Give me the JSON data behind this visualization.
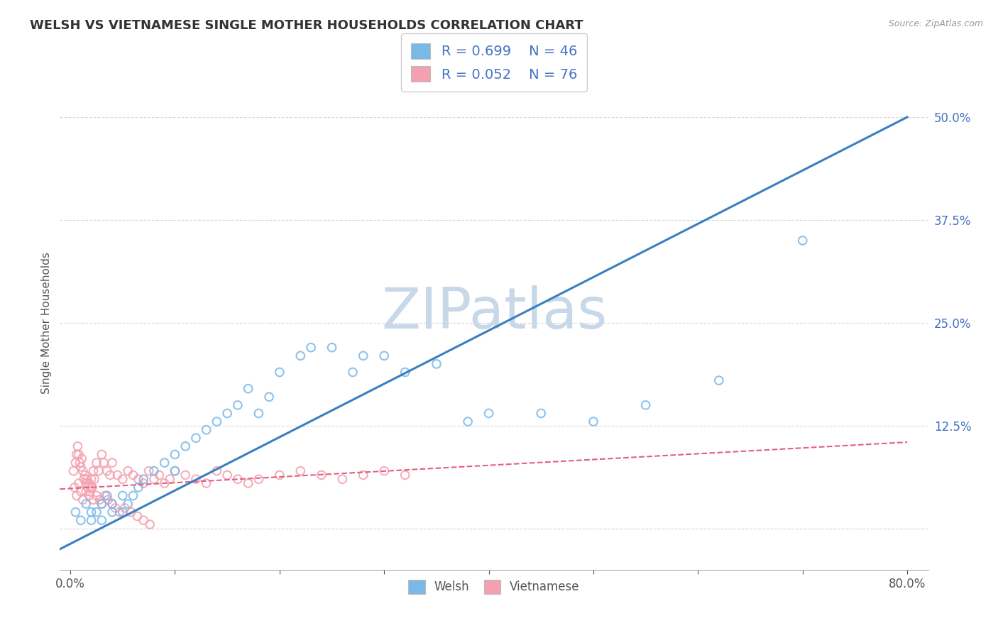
{
  "title": "WELSH VS VIETNAMESE SINGLE MOTHER HOUSEHOLDS CORRELATION CHART",
  "source": "Source: ZipAtlas.com",
  "ylabel": "Single Mother Households",
  "xlim": [
    -0.01,
    0.82
  ],
  "ylim": [
    -0.05,
    0.55
  ],
  "yticks": [
    0.0,
    0.125,
    0.25,
    0.375,
    0.5
  ],
  "welsh_R": 0.699,
  "welsh_N": 46,
  "vietnamese_R": 0.052,
  "vietnamese_N": 76,
  "welsh_color": "#7ab8e8",
  "vietnamese_color": "#f4a0b0",
  "welsh_line_color": "#3a7fc1",
  "vietnamese_line_color": "#e06080",
  "welsh_line_x0": -0.01,
  "welsh_line_y0": -0.025,
  "welsh_line_x1": 0.8,
  "welsh_line_y1": 0.5,
  "viet_line_x0": -0.01,
  "viet_line_y0": 0.048,
  "viet_line_x1": 0.8,
  "viet_line_y1": 0.105,
  "welsh_scatter_x": [
    0.005,
    0.01,
    0.015,
    0.02,
    0.02,
    0.025,
    0.03,
    0.03,
    0.035,
    0.04,
    0.04,
    0.05,
    0.05,
    0.055,
    0.06,
    0.065,
    0.07,
    0.08,
    0.09,
    0.1,
    0.1,
    0.11,
    0.12,
    0.13,
    0.14,
    0.15,
    0.16,
    0.17,
    0.18,
    0.19,
    0.2,
    0.22,
    0.23,
    0.25,
    0.27,
    0.28,
    0.3,
    0.32,
    0.35,
    0.38,
    0.4,
    0.45,
    0.5,
    0.55,
    0.62,
    0.7
  ],
  "welsh_scatter_y": [
    0.02,
    0.01,
    0.03,
    0.02,
    0.01,
    0.02,
    0.03,
    0.01,
    0.04,
    0.02,
    0.03,
    0.04,
    0.02,
    0.03,
    0.04,
    0.05,
    0.06,
    0.07,
    0.08,
    0.09,
    0.07,
    0.1,
    0.11,
    0.12,
    0.13,
    0.14,
    0.15,
    0.17,
    0.14,
    0.16,
    0.19,
    0.21,
    0.22,
    0.22,
    0.19,
    0.21,
    0.21,
    0.19,
    0.2,
    0.13,
    0.14,
    0.14,
    0.13,
    0.15,
    0.18,
    0.35
  ],
  "vietnamese_scatter_x": [
    0.003,
    0.005,
    0.006,
    0.007,
    0.008,
    0.009,
    0.01,
    0.011,
    0.012,
    0.013,
    0.014,
    0.015,
    0.016,
    0.017,
    0.018,
    0.019,
    0.02,
    0.021,
    0.022,
    0.023,
    0.025,
    0.027,
    0.03,
    0.032,
    0.035,
    0.038,
    0.04,
    0.045,
    0.05,
    0.055,
    0.06,
    0.065,
    0.07,
    0.075,
    0.08,
    0.085,
    0.09,
    0.095,
    0.1,
    0.11,
    0.12,
    0.13,
    0.14,
    0.15,
    0.16,
    0.17,
    0.18,
    0.2,
    0.22,
    0.24,
    0.26,
    0.28,
    0.3,
    0.32,
    0.004,
    0.006,
    0.008,
    0.01,
    0.012,
    0.015,
    0.018,
    0.02,
    0.022,
    0.025,
    0.028,
    0.03,
    0.033,
    0.036,
    0.04,
    0.043,
    0.047,
    0.052,
    0.058,
    0.064,
    0.07,
    0.076
  ],
  "vietnamese_scatter_y": [
    0.07,
    0.08,
    0.09,
    0.1,
    0.09,
    0.08,
    0.075,
    0.085,
    0.07,
    0.06,
    0.065,
    0.055,
    0.06,
    0.05,
    0.055,
    0.045,
    0.06,
    0.05,
    0.07,
    0.06,
    0.08,
    0.07,
    0.09,
    0.08,
    0.07,
    0.065,
    0.08,
    0.065,
    0.06,
    0.07,
    0.065,
    0.06,
    0.055,
    0.07,
    0.06,
    0.065,
    0.055,
    0.06,
    0.07,
    0.065,
    0.06,
    0.055,
    0.07,
    0.065,
    0.06,
    0.055,
    0.06,
    0.065,
    0.07,
    0.065,
    0.06,
    0.065,
    0.07,
    0.065,
    0.05,
    0.04,
    0.055,
    0.045,
    0.035,
    0.045,
    0.04,
    0.05,
    0.035,
    0.04,
    0.035,
    0.03,
    0.04,
    0.035,
    0.03,
    0.025,
    0.02,
    0.025,
    0.02,
    0.015,
    0.01,
    0.005
  ],
  "watermark_text": "ZIPatlas",
  "watermark_color": "#c8d8e8",
  "background_color": "#ffffff",
  "grid_color": "#d8d8d8",
  "tick_color": "#4472c4",
  "axis_color": "#aaaaaa"
}
